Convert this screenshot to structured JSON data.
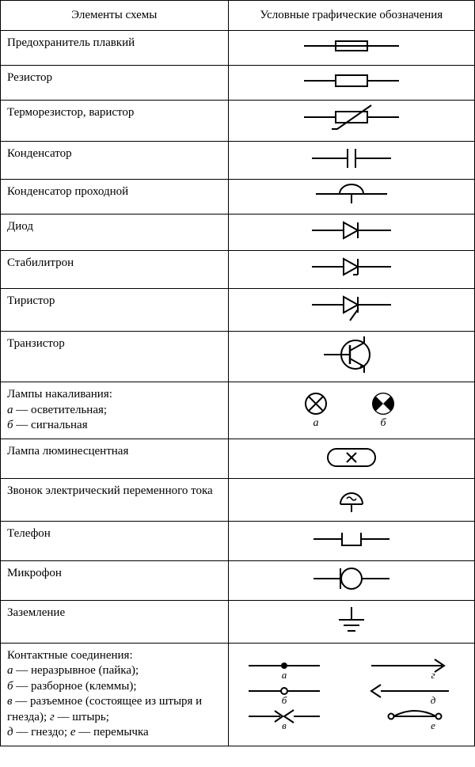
{
  "header": {
    "col1": "Элементы схемы",
    "col2": "Условные графические обозначения"
  },
  "col_widths": {
    "col1": "48%",
    "col2": "52%"
  },
  "stroke": "#000000",
  "stroke_width": 2,
  "rows": [
    {
      "label": "Предохранитель плавкий",
      "symbol": "fuse"
    },
    {
      "label": "Резистор",
      "symbol": "resistor"
    },
    {
      "label": "Терморезистор, варистор",
      "symbol": "thermistor"
    },
    {
      "label": "Конденсатор",
      "symbol": "capacitor"
    },
    {
      "label": "Конденсатор проходной",
      "symbol": "capacitor_feedthrough"
    },
    {
      "label": "Диод",
      "symbol": "diode"
    },
    {
      "label": "Стабилитрон",
      "symbol": "zener"
    },
    {
      "label": "Тиристор",
      "symbol": "thyristor"
    },
    {
      "label": "Транзистор",
      "symbol": "transistor"
    },
    {
      "label": "Лампы накаливания:<br><i>а</i> — осветительная;<br><i>б</i> — сигнальная",
      "symbol": "lamps",
      "sublabels": [
        "а",
        "б"
      ]
    },
    {
      "label": "Лампа люминесцентная",
      "symbol": "lamp_fluorescent"
    },
    {
      "label": "Звонок электрический переменного тока",
      "symbol": "bell"
    },
    {
      "label": "Телефон",
      "symbol": "telephone"
    },
    {
      "label": "Микрофон",
      "symbol": "microphone"
    },
    {
      "label": "Заземление",
      "symbol": "ground"
    },
    {
      "label": "Контактные соединения:<br><i>а</i> — неразрывное (пайка);<br><i>б</i> — разборное (клеммы);<br><i>в</i> — разъемное (состоящее из штыря и гнезда); <i>г</i> — штырь;<br><i>д</i> — гнездо; <i>е</i> — перемычка",
      "symbol": "contacts",
      "sublabels": [
        "а",
        "б",
        "в",
        "г",
        "д",
        "е"
      ]
    }
  ],
  "colors": {
    "fill_black": "#000000",
    "bg": "#ffffff"
  }
}
